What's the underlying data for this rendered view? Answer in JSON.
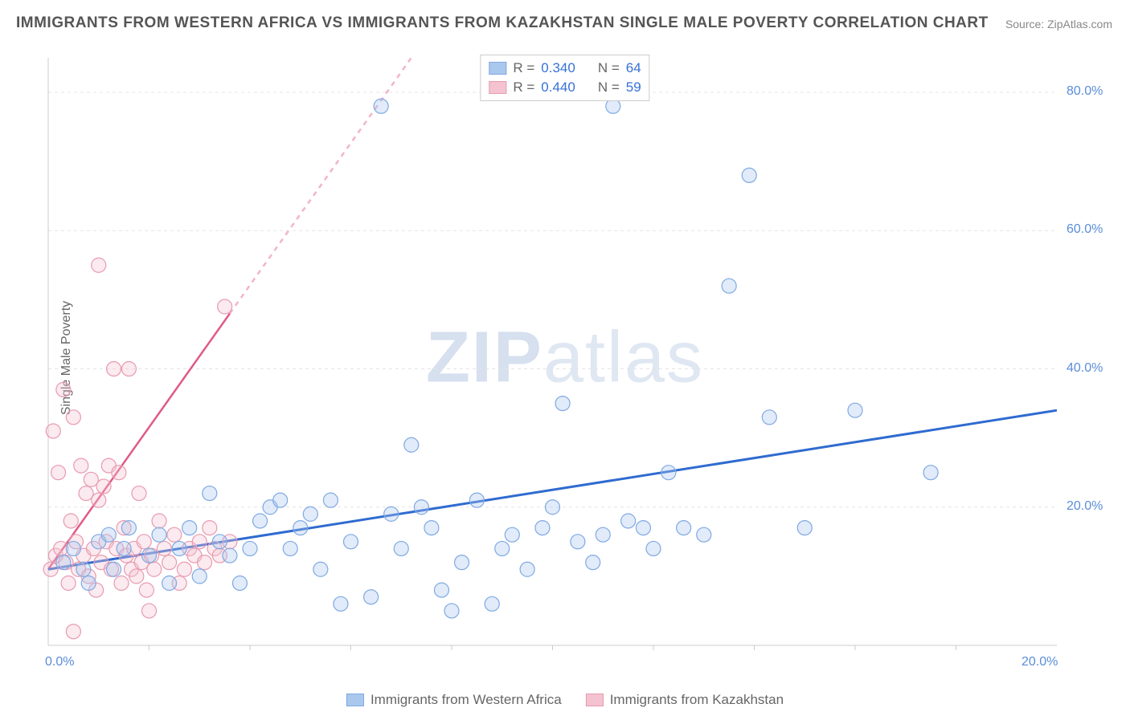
{
  "title": "IMMIGRANTS FROM WESTERN AFRICA VS IMMIGRANTS FROM KAZAKHSTAN SINGLE MALE POVERTY CORRELATION CHART",
  "source": "Source: ZipAtlas.com",
  "ylabel": "Single Male Poverty",
  "watermark": {
    "zip": "ZIP",
    "atlas": "atlas"
  },
  "chart": {
    "type": "scatter",
    "background_color": "#ffffff",
    "grid_color": "#e4e4e4",
    "axis_color": "#cccccc",
    "tick_label_color": "#5a8dd8",
    "text_color": "#666666",
    "title_color": "#555555",
    "title_fontsize": 19,
    "label_fontsize": 16,
    "tick_fontsize": 16,
    "xlim": [
      0,
      20
    ],
    "ylim": [
      0,
      85
    ],
    "x_ticks": [
      0.0,
      20.0
    ],
    "x_tick_labels": [
      "0.0%",
      "20.0%"
    ],
    "y_ticks": [
      20.0,
      40.0,
      60.0,
      80.0
    ],
    "y_tick_labels": [
      "20.0%",
      "40.0%",
      "60.0%",
      "80.0%"
    ],
    "x_minor_ticks": [
      2,
      4,
      6,
      8,
      10,
      12,
      14,
      16,
      18
    ],
    "marker_radius": 9,
    "marker_stroke_width": 1.2,
    "marker_fill_opacity": 0.35,
    "series": [
      {
        "name": "Immigrants from Western Africa",
        "color_stroke": "#7fa9e3",
        "color_fill": "#aac7ed",
        "trend_color": "#2f6bd0",
        "trend_width": 3,
        "R": "0.340",
        "N": "64",
        "trend": {
          "x1": 0,
          "y1": 11,
          "x2": 20,
          "y2": 34
        },
        "points": [
          [
            0.3,
            12
          ],
          [
            0.5,
            14
          ],
          [
            0.7,
            11
          ],
          [
            0.8,
            9
          ],
          [
            1.0,
            15
          ],
          [
            1.2,
            16
          ],
          [
            1.3,
            11
          ],
          [
            1.5,
            14
          ],
          [
            1.6,
            17
          ],
          [
            2.0,
            13
          ],
          [
            2.2,
            16
          ],
          [
            2.4,
            9
          ],
          [
            2.6,
            14
          ],
          [
            2.8,
            17
          ],
          [
            3.0,
            10
          ],
          [
            3.2,
            22
          ],
          [
            3.4,
            15
          ],
          [
            3.6,
            13
          ],
          [
            3.8,
            9
          ],
          [
            4.0,
            14
          ],
          [
            4.2,
            18
          ],
          [
            4.4,
            20
          ],
          [
            4.6,
            21
          ],
          [
            4.8,
            14
          ],
          [
            5.0,
            17
          ],
          [
            5.2,
            19
          ],
          [
            5.4,
            11
          ],
          [
            5.6,
            21
          ],
          [
            5.8,
            6
          ],
          [
            6.0,
            15
          ],
          [
            6.4,
            7
          ],
          [
            6.6,
            78
          ],
          [
            6.8,
            19
          ],
          [
            7.0,
            14
          ],
          [
            7.2,
            29
          ],
          [
            7.4,
            20
          ],
          [
            7.6,
            17
          ],
          [
            7.8,
            8
          ],
          [
            8.0,
            5
          ],
          [
            8.2,
            12
          ],
          [
            8.5,
            21
          ],
          [
            8.8,
            6
          ],
          [
            9.0,
            14
          ],
          [
            9.2,
            16
          ],
          [
            9.5,
            11
          ],
          [
            9.8,
            17
          ],
          [
            10.0,
            20
          ],
          [
            10.2,
            35
          ],
          [
            10.5,
            15
          ],
          [
            10.8,
            12
          ],
          [
            11.0,
            16
          ],
          [
            11.2,
            78
          ],
          [
            11.5,
            18
          ],
          [
            11.8,
            17
          ],
          [
            12.0,
            14
          ],
          [
            12.3,
            25
          ],
          [
            12.6,
            17
          ],
          [
            13.0,
            16
          ],
          [
            13.5,
            52
          ],
          [
            13.9,
            68
          ],
          [
            14.3,
            33
          ],
          [
            15.0,
            17
          ],
          [
            16.0,
            34
          ],
          [
            17.5,
            25
          ]
        ]
      },
      {
        "name": "Immigrants from Kazakhstan",
        "color_stroke": "#e89ab0",
        "color_fill": "#f4c2d0",
        "trend_color": "#e05a86",
        "trend_width": 2.5,
        "trend_dash_after_x": 3.6,
        "R": "0.440",
        "N": "59",
        "trend": {
          "x1": 0,
          "y1": 11,
          "x2": 7.2,
          "y2": 85
        },
        "points": [
          [
            0.05,
            11
          ],
          [
            0.1,
            31
          ],
          [
            0.15,
            13
          ],
          [
            0.2,
            25
          ],
          [
            0.25,
            14
          ],
          [
            0.3,
            37
          ],
          [
            0.35,
            12
          ],
          [
            0.4,
            9
          ],
          [
            0.45,
            18
          ],
          [
            0.5,
            33
          ],
          [
            0.55,
            15
          ],
          [
            0.6,
            11
          ],
          [
            0.65,
            26
          ],
          [
            0.7,
            13
          ],
          [
            0.75,
            22
          ],
          [
            0.8,
            10
          ],
          [
            0.85,
            24
          ],
          [
            0.9,
            14
          ],
          [
            0.95,
            8
          ],
          [
            1.0,
            21
          ],
          [
            1.0,
            55
          ],
          [
            1.05,
            12
          ],
          [
            1.1,
            23
          ],
          [
            1.15,
            15
          ],
          [
            1.2,
            26
          ],
          [
            1.25,
            11
          ],
          [
            1.3,
            40
          ],
          [
            1.35,
            14
          ],
          [
            1.4,
            25
          ],
          [
            1.45,
            9
          ],
          [
            1.5,
            17
          ],
          [
            1.55,
            13
          ],
          [
            1.6,
            40
          ],
          [
            1.65,
            11
          ],
          [
            1.7,
            14
          ],
          [
            1.75,
            10
          ],
          [
            1.8,
            22
          ],
          [
            1.85,
            12
          ],
          [
            1.9,
            15
          ],
          [
            1.95,
            8
          ],
          [
            2.0,
            5
          ],
          [
            2.05,
            13
          ],
          [
            2.1,
            11
          ],
          [
            2.2,
            18
          ],
          [
            2.3,
            14
          ],
          [
            2.4,
            12
          ],
          [
            2.5,
            16
          ],
          [
            2.6,
            9
          ],
          [
            2.7,
            11
          ],
          [
            2.8,
            14
          ],
          [
            2.9,
            13
          ],
          [
            3.0,
            15
          ],
          [
            3.1,
            12
          ],
          [
            3.2,
            17
          ],
          [
            3.3,
            14
          ],
          [
            3.4,
            13
          ],
          [
            3.5,
            49
          ],
          [
            3.6,
            15
          ],
          [
            0.5,
            2
          ]
        ]
      }
    ],
    "legend_top": {
      "border_color": "#cccccc",
      "bg_color": "#ffffff"
    }
  }
}
